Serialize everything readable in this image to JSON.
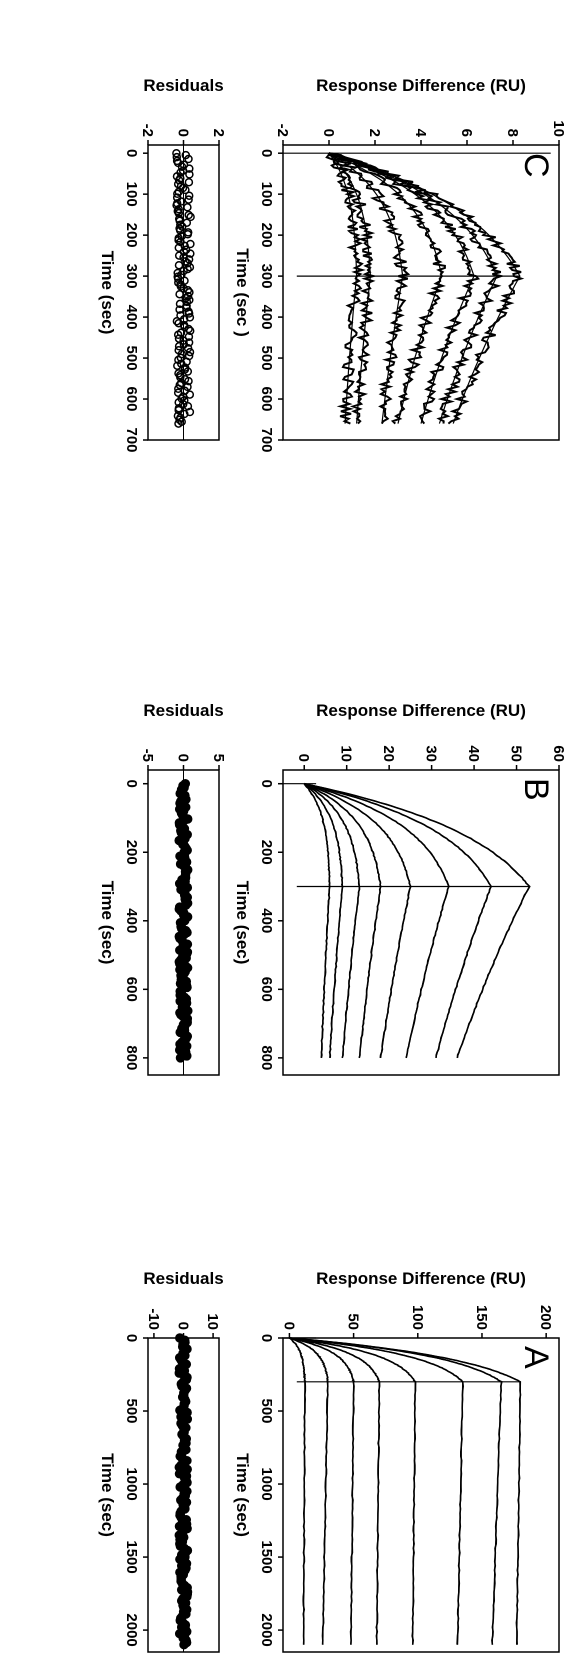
{
  "chart_data": [
    {
      "panel": "A",
      "type": "line",
      "xlabel": "Time (sec)",
      "ylabel": "Response Difference (RU)",
      "xlim": [
        0,
        2150
      ],
      "ylim": [
        -5,
        210
      ],
      "xticks": [
        0,
        500,
        1000,
        1500,
        2000
      ],
      "yticks": [
        0,
        50,
        100,
        150,
        200
      ],
      "injection_end": 300,
      "end_time": 2100,
      "curves": [
        {
          "peak": 180,
          "end": 177
        },
        {
          "peak": 165,
          "end": 158
        },
        {
          "peak": 135,
          "end": 131
        },
        {
          "peak": 98,
          "end": 96
        },
        {
          "peak": 70,
          "end": 68
        },
        {
          "peak": 50,
          "end": 48
        },
        {
          "peak": 30,
          "end": 26
        },
        {
          "peak": 12,
          "end": 11
        }
      ],
      "residuals": {
        "ylabel": "Residuals",
        "ylim": [
          -12,
          12
        ],
        "yticks": [
          10,
          0,
          -10
        ],
        "xticks": [
          0,
          500,
          1000,
          1500,
          2000
        ],
        "xlabel": "Time (sec)"
      }
    },
    {
      "panel": "B",
      "type": "line",
      "xlabel": "Time (sec)",
      "ylabel": "Response Difference (RU)",
      "xlim": [
        -40,
        850
      ],
      "ylim": [
        -5,
        60
      ],
      "xticks": [
        0,
        200,
        400,
        600,
        800
      ],
      "yticks": [
        0,
        10,
        20,
        30,
        40,
        50,
        60
      ],
      "injection_end": 300,
      "end_time": 800,
      "curves": [
        {
          "peak": 53,
          "end": 36
        },
        {
          "peak": 44,
          "end": 31
        },
        {
          "peak": 34,
          "end": 24
        },
        {
          "peak": 25,
          "end": 18
        },
        {
          "peak": 18,
          "end": 13
        },
        {
          "peak": 13,
          "end": 9
        },
        {
          "peak": 9,
          "end": 6
        },
        {
          "peak": 6,
          "end": 4
        }
      ],
      "residuals": {
        "ylabel": "Residuals",
        "ylim": [
          -5,
          5
        ],
        "yticks": [
          5,
          0,
          -5
        ],
        "xticks": [
          0,
          200,
          400,
          600,
          800
        ],
        "xlabel": "Time (sec)"
      }
    },
    {
      "panel": "C",
      "type": "line",
      "xlabel": "Time (sec )",
      "ylabel": "Response Difference (RU)",
      "xlim": [
        -20,
        700
      ],
      "ylim": [
        -2,
        10
      ],
      "xticks": [
        0,
        100,
        200,
        300,
        400,
        500,
        600,
        700
      ],
      "yticks": [
        -2,
        0,
        2,
        4,
        6,
        8,
        10
      ],
      "injection_end": 300,
      "end_time": 660,
      "curves": [
        {
          "peak": 8.3,
          "end": 5.4
        },
        {
          "peak": 7.3,
          "end": 4.8
        },
        {
          "peak": 6.3,
          "end": 4.0
        },
        {
          "peak": 4.9,
          "end": 3.0
        },
        {
          "peak": 3.2,
          "end": 2.3
        },
        {
          "peak": 1.8,
          "end": 1.2
        },
        {
          "peak": 1.2,
          "end": 0.7
        }
      ],
      "residuals": {
        "ylabel": "Residuals",
        "ylim": [
          -2,
          2
        ],
        "yticks": [
          2,
          0,
          -2
        ],
        "xticks": [
          0,
          100,
          200,
          300,
          400,
          500,
          600,
          700
        ],
        "xlabel": "Time (sec)"
      }
    }
  ]
}
